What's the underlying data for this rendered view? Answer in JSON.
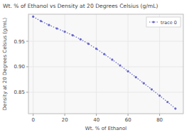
{
  "chart_data": {
    "type": "line",
    "title": "Wt. % of Ethanol vs Density at 20 Degrees Celsius (g/mL)",
    "xlabel": "Wt. % of Ethanol",
    "ylabel": "Density at 20 Degrees Celsius (g/mL)",
    "x": [
      0,
      5,
      10,
      15,
      20,
      25,
      30,
      35,
      40,
      45,
      50,
      55,
      60,
      65,
      70,
      75,
      80,
      85,
      90
    ],
    "series": [
      {
        "name": "trace 0",
        "color": "#6666cc",
        "marker": "point",
        "line_style": "dotted",
        "values": [
          0.9982,
          0.9894,
          0.9819,
          0.9751,
          0.9687,
          0.9617,
          0.9538,
          0.9449,
          0.9352,
          0.9247,
          0.9139,
          0.9026,
          0.8911,
          0.8795,
          0.8676,
          0.8556,
          0.8434,
          0.831,
          0.818
        ]
      }
    ],
    "xlim": [
      -3,
      95
    ],
    "ylim": [
      0.808,
      1.003
    ],
    "xticks": [
      0,
      20,
      40,
      60,
      80
    ],
    "yticks": [
      0.85,
      {
        "value": 0.9,
        "label": "0.90"
      },
      0.95
    ],
    "grid": true,
    "legend": "upper right"
  }
}
